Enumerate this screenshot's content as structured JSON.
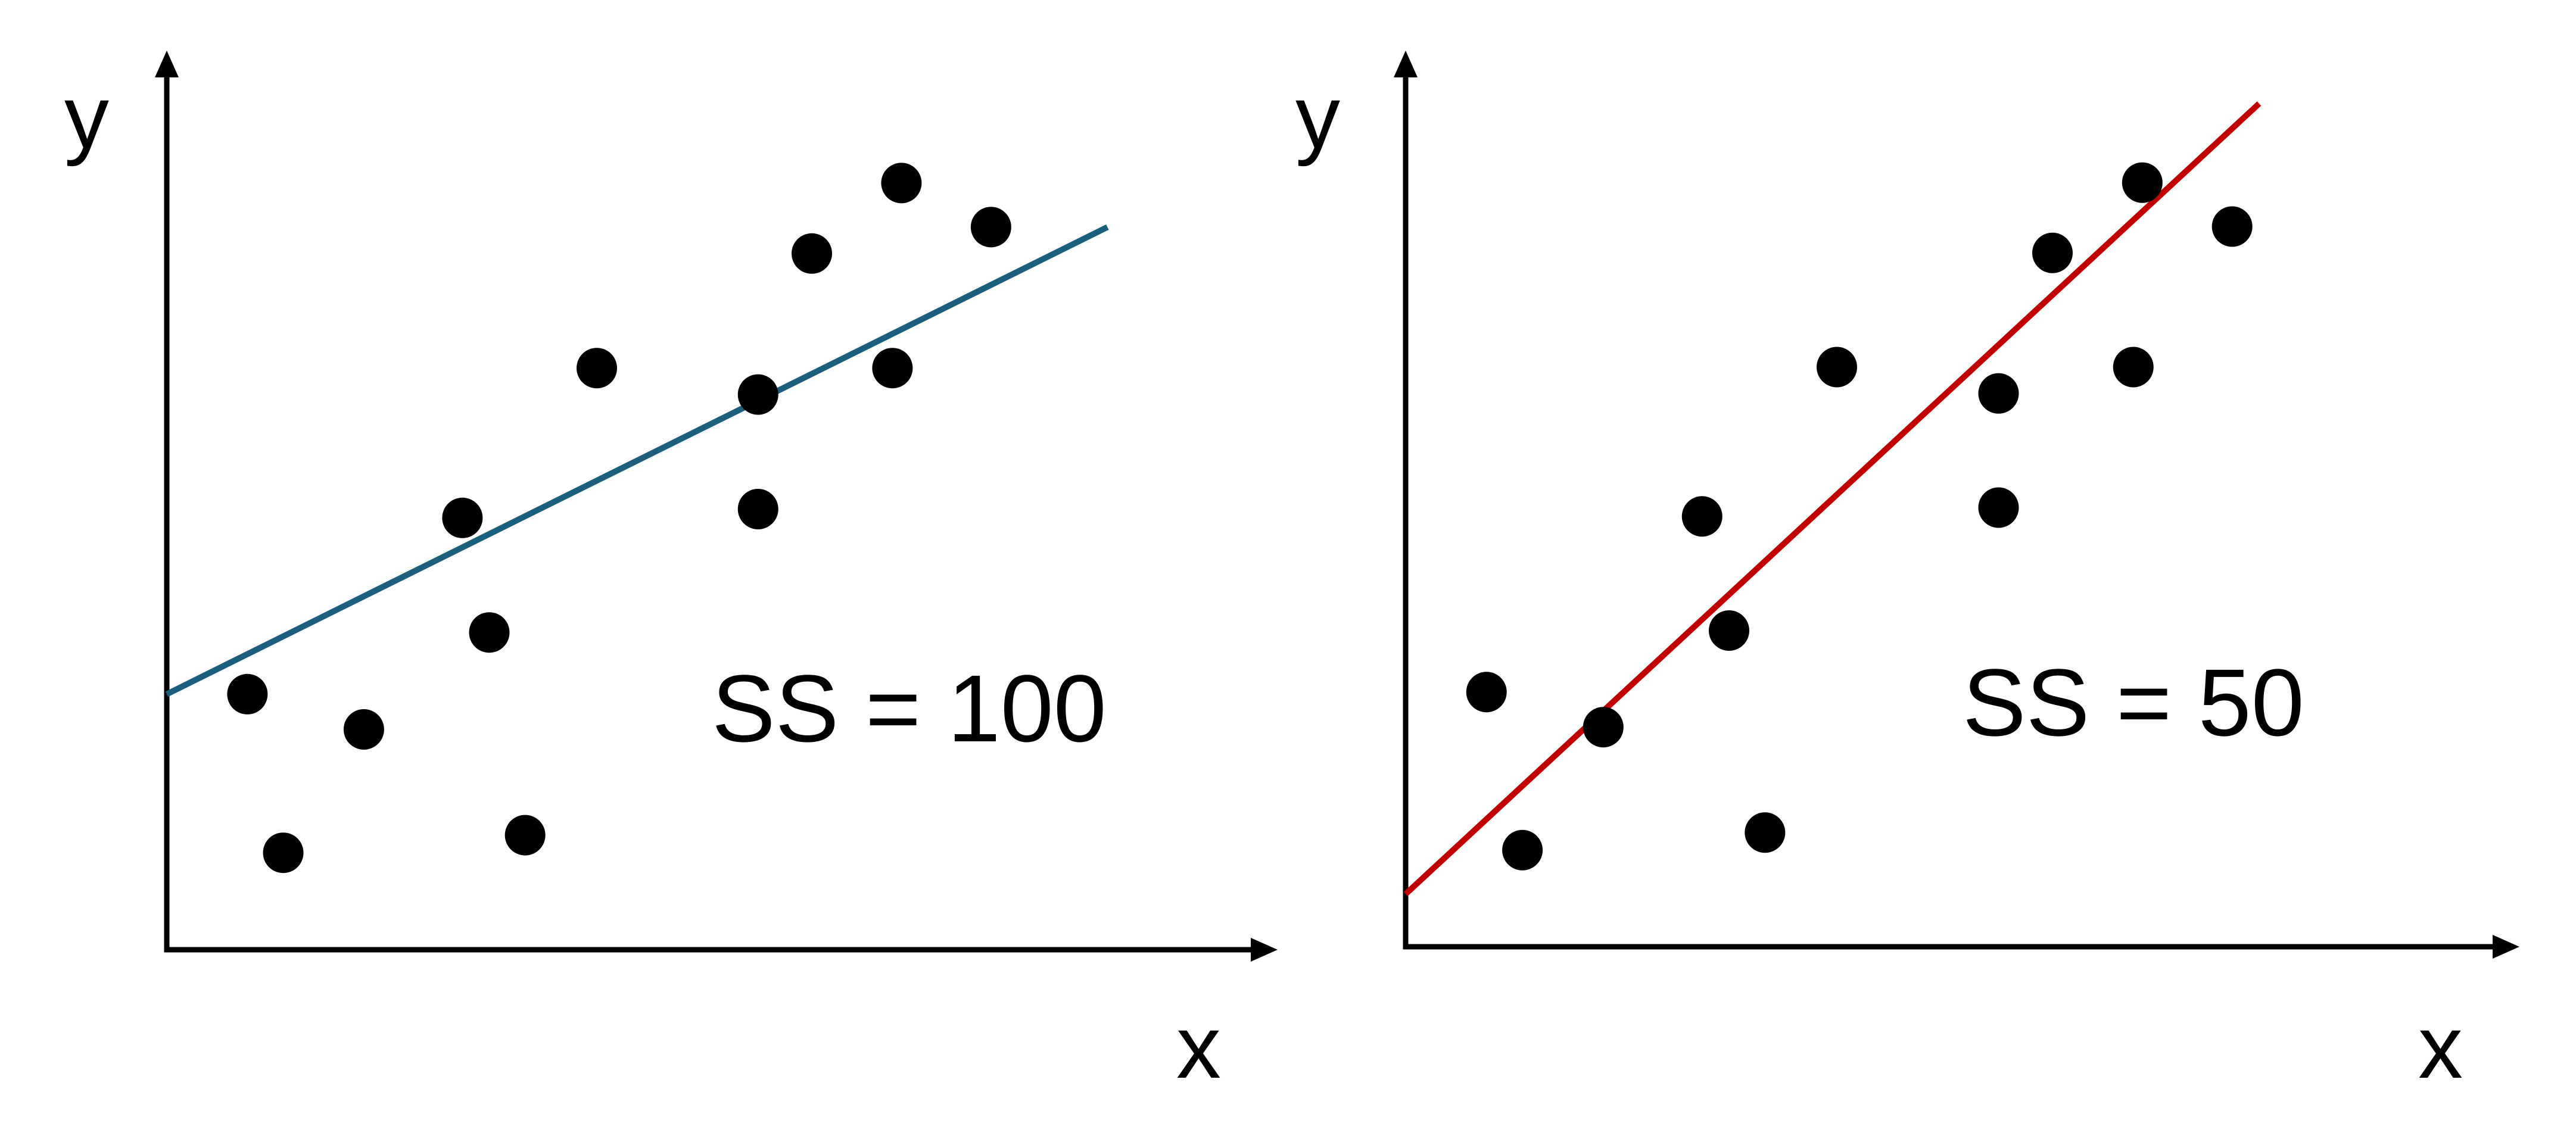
{
  "colors": {
    "axis": "#000000",
    "point": "#000000",
    "line_left": "#1b5e7e",
    "line_right": "#c00000",
    "background": "#ffffff"
  },
  "chart_data": [
    {
      "type": "scatter",
      "xlabel": "x",
      "ylabel": "y",
      "annotation": "SS = 100",
      "points": [
        [
          0.9,
          2.9
        ],
        [
          1.3,
          1.1
        ],
        [
          2.2,
          2.5
        ],
        [
          3.3,
          4.9
        ],
        [
          3.6,
          3.6
        ],
        [
          4.0,
          1.3
        ],
        [
          4.8,
          6.6
        ],
        [
          6.6,
          5.0
        ],
        [
          6.6,
          6.3
        ],
        [
          7.2,
          7.9
        ],
        [
          8.1,
          6.6
        ],
        [
          8.2,
          8.7
        ],
        [
          9.2,
          8.2
        ]
      ],
      "fit_line": {
        "x": [
          0,
          10.5
        ],
        "y": [
          2.9,
          8.2
        ]
      },
      "xlim": [
        0,
        12
      ],
      "ylim": [
        0,
        10
      ],
      "grid": false
    },
    {
      "type": "scatter",
      "xlabel": "x",
      "ylabel": "y",
      "annotation": "SS = 50",
      "points": [
        [
          0.9,
          2.9
        ],
        [
          1.3,
          1.1
        ],
        [
          2.2,
          2.5
        ],
        [
          3.3,
          4.9
        ],
        [
          3.6,
          3.6
        ],
        [
          4.0,
          1.3
        ],
        [
          4.8,
          6.6
        ],
        [
          6.6,
          5.0
        ],
        [
          6.6,
          6.3
        ],
        [
          7.2,
          7.9
        ],
        [
          8.1,
          6.6
        ],
        [
          8.2,
          8.7
        ],
        [
          9.2,
          8.2
        ]
      ],
      "fit_line": {
        "x": [
          0,
          9.5
        ],
        "y": [
          0.6,
          9.6
        ]
      },
      "xlim": [
        0,
        12
      ],
      "ylim": [
        0,
        10
      ],
      "grid": false
    }
  ]
}
